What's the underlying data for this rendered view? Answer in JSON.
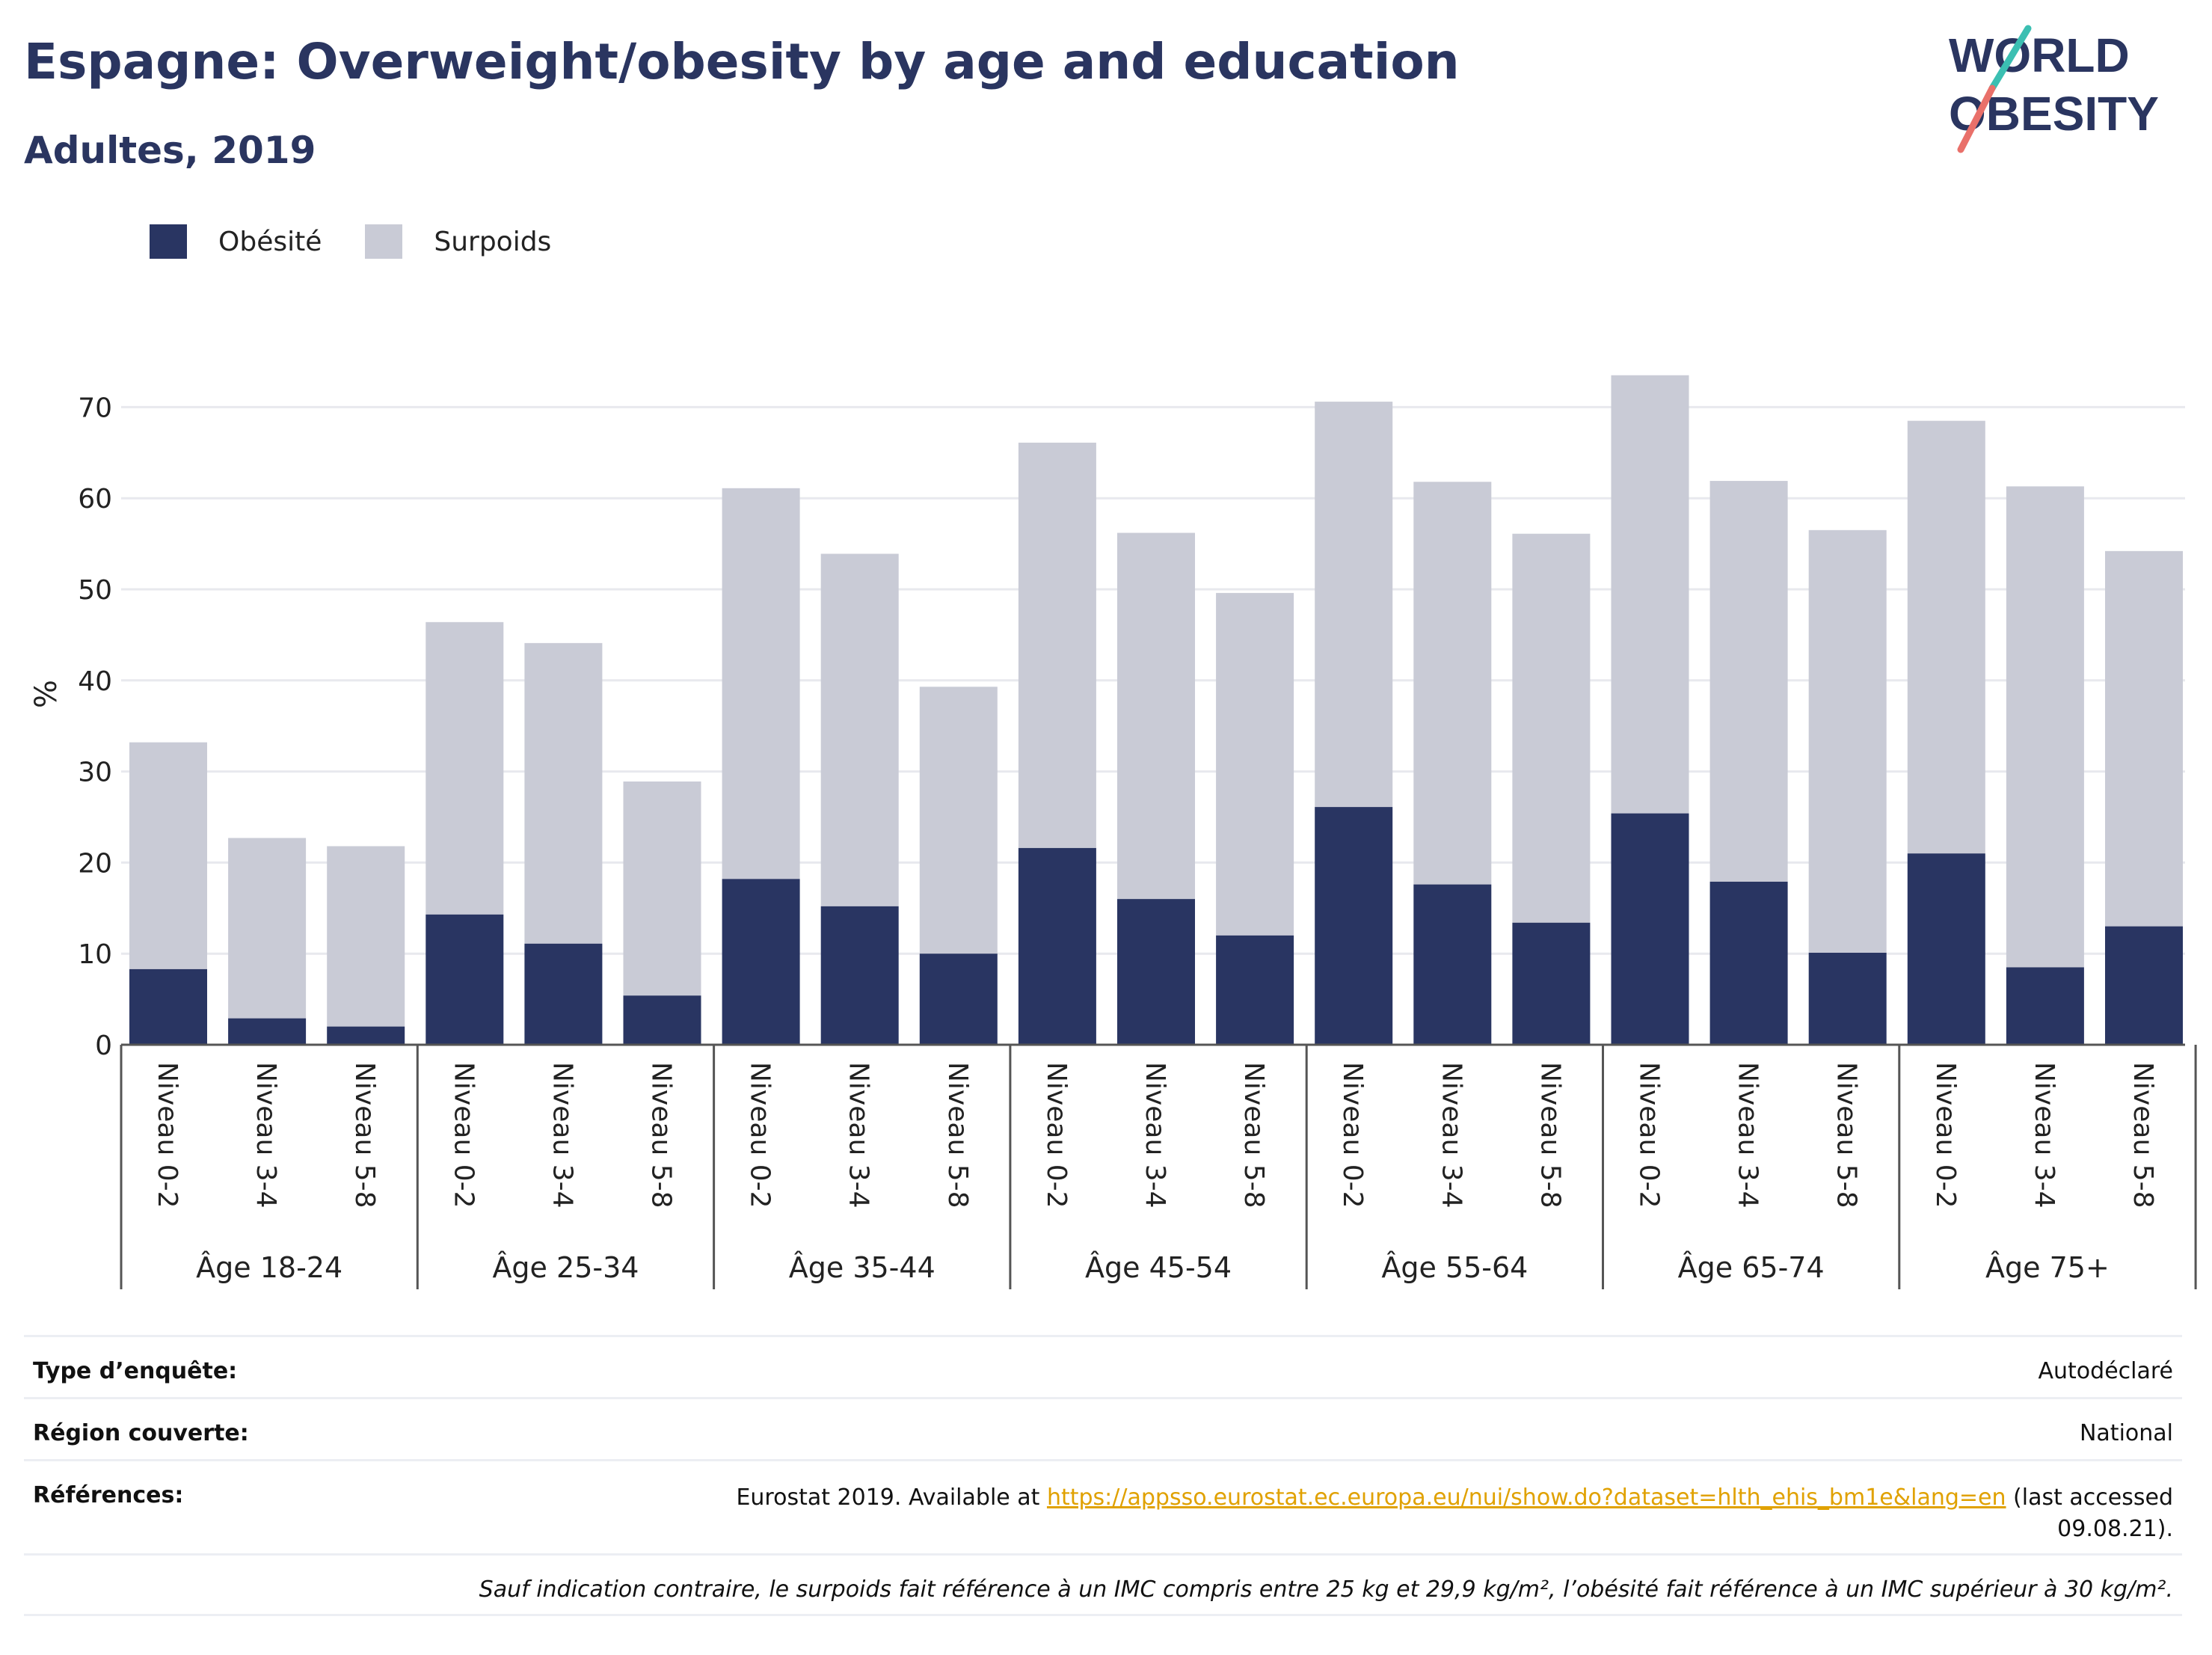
{
  "title": "Espagne: Overweight/obesity by age and education",
  "subtitle": "Adultes, 2019",
  "logo": {
    "line1": "WORLD",
    "line2": "OBESITY"
  },
  "colors": {
    "obesity": "#293562",
    "overweight": "#c9cbd6",
    "title": "#2a3560",
    "grid": "#e8e9ee",
    "axis": "#555555",
    "link": "#e0a100",
    "logo_teal": "#3bbfb2",
    "logo_coral": "#e9706a"
  },
  "chart_data": {
    "type": "bar",
    "stacked": true,
    "title": "Espagne: Overweight/obesity by age and education",
    "subtitle": "Adultes, 2019",
    "ylabel": "%",
    "ylim": [
      0,
      75
    ],
    "yticks": [
      0,
      10,
      20,
      30,
      40,
      50,
      60,
      70
    ],
    "grid": true,
    "legend_position": "top-left",
    "groups": [
      {
        "label": "Âge 18-24",
        "categories": [
          "Niveau 0-2",
          "Niveau 3-4",
          "Niveau 5-8"
        ]
      },
      {
        "label": "Âge 25-34",
        "categories": [
          "Niveau 0-2",
          "Niveau 3-4",
          "Niveau 5-8"
        ]
      },
      {
        "label": "Âge 35-44",
        "categories": [
          "Niveau 0-2",
          "Niveau 3-4",
          "Niveau 5-8"
        ]
      },
      {
        "label": "Âge 45-54",
        "categories": [
          "Niveau 0-2",
          "Niveau 3-4",
          "Niveau 5-8"
        ]
      },
      {
        "label": "Âge 55-64",
        "categories": [
          "Niveau 0-2",
          "Niveau 3-4",
          "Niveau 5-8"
        ]
      },
      {
        "label": "Âge 65-74",
        "categories": [
          "Niveau 0-2",
          "Niveau 3-4",
          "Niveau 5-8"
        ]
      },
      {
        "label": "Âge 75+",
        "categories": [
          "Niveau 0-2",
          "Niveau 3-4",
          "Niveau 5-8"
        ]
      }
    ],
    "series": [
      {
        "name": "Obésité",
        "values": [
          8.3,
          2.9,
          2.0,
          14.3,
          11.1,
          5.4,
          18.2,
          15.2,
          10.0,
          21.6,
          16.0,
          12.0,
          26.1,
          17.6,
          13.4,
          25.4,
          17.9,
          10.1,
          21.0,
          8.5,
          13.0
        ]
      },
      {
        "name": "Surpoids",
        "values": [
          24.9,
          19.8,
          19.8,
          32.1,
          33.0,
          23.5,
          42.9,
          38.7,
          29.3,
          44.5,
          40.2,
          37.6,
          44.5,
          44.2,
          42.7,
          48.1,
          44.0,
          46.4,
          47.5,
          52.8,
          41.2
        ]
      }
    ]
  },
  "info": {
    "survey_label": "Type d’enquête:",
    "survey_value": "Autodéclaré",
    "region_label": "Région couverte:",
    "region_value": "National",
    "refs_label": "Références:",
    "refs_prefix": "Eurostat 2019. Available at ",
    "refs_link": "https://appsso.eurostat.ec.europa.eu/nui/show.do?dataset=hlth_ehis_bm1e&lang=en",
    "refs_suffix": " (last accessed 09.08.21).",
    "note": "Sauf indication contraire, le surpoids fait référence à un IMC compris entre 25 kg et 29,9 kg/m², l’obésité fait référence à un IMC supérieur à 30 kg/m²."
  }
}
